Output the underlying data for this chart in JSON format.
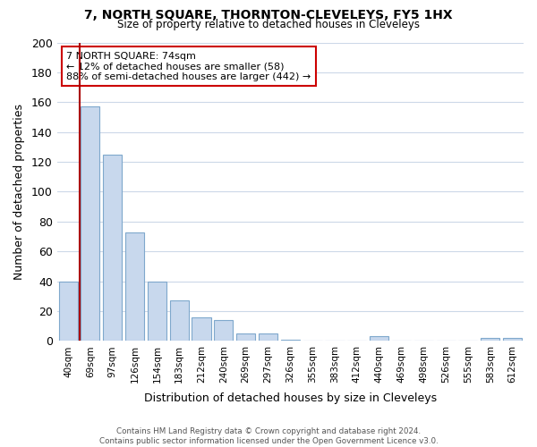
{
  "title": "7, NORTH SQUARE, THORNTON-CLEVELEYS, FY5 1HX",
  "subtitle": "Size of property relative to detached houses in Cleveleys",
  "xlabel": "Distribution of detached houses by size in Cleveleys",
  "ylabel": "Number of detached properties",
  "bar_color": "#c8d8ed",
  "bar_edge_color": "#7fa8cc",
  "categories": [
    "40sqm",
    "69sqm",
    "97sqm",
    "126sqm",
    "154sqm",
    "183sqm",
    "212sqm",
    "240sqm",
    "269sqm",
    "297sqm",
    "326sqm",
    "355sqm",
    "383sqm",
    "412sqm",
    "440sqm",
    "469sqm",
    "498sqm",
    "526sqm",
    "555sqm",
    "583sqm",
    "612sqm"
  ],
  "values": [
    40,
    157,
    125,
    73,
    40,
    27,
    16,
    14,
    5,
    5,
    1,
    0,
    0,
    0,
    3,
    0,
    0,
    0,
    0,
    2,
    2
  ],
  "ylim": [
    0,
    200
  ],
  "yticks": [
    0,
    20,
    40,
    60,
    80,
    100,
    120,
    140,
    160,
    180,
    200
  ],
  "marker_color": "#aa0000",
  "annotation_box_text": "7 NORTH SQUARE: 74sqm\n← 12% of detached houses are smaller (58)\n88% of semi-detached houses are larger (442) →",
  "footer_text": "Contains HM Land Registry data © Crown copyright and database right 2024.\nContains public sector information licensed under the Open Government Licence v3.0.",
  "background_color": "#ffffff",
  "grid_color": "#ccd8e8"
}
